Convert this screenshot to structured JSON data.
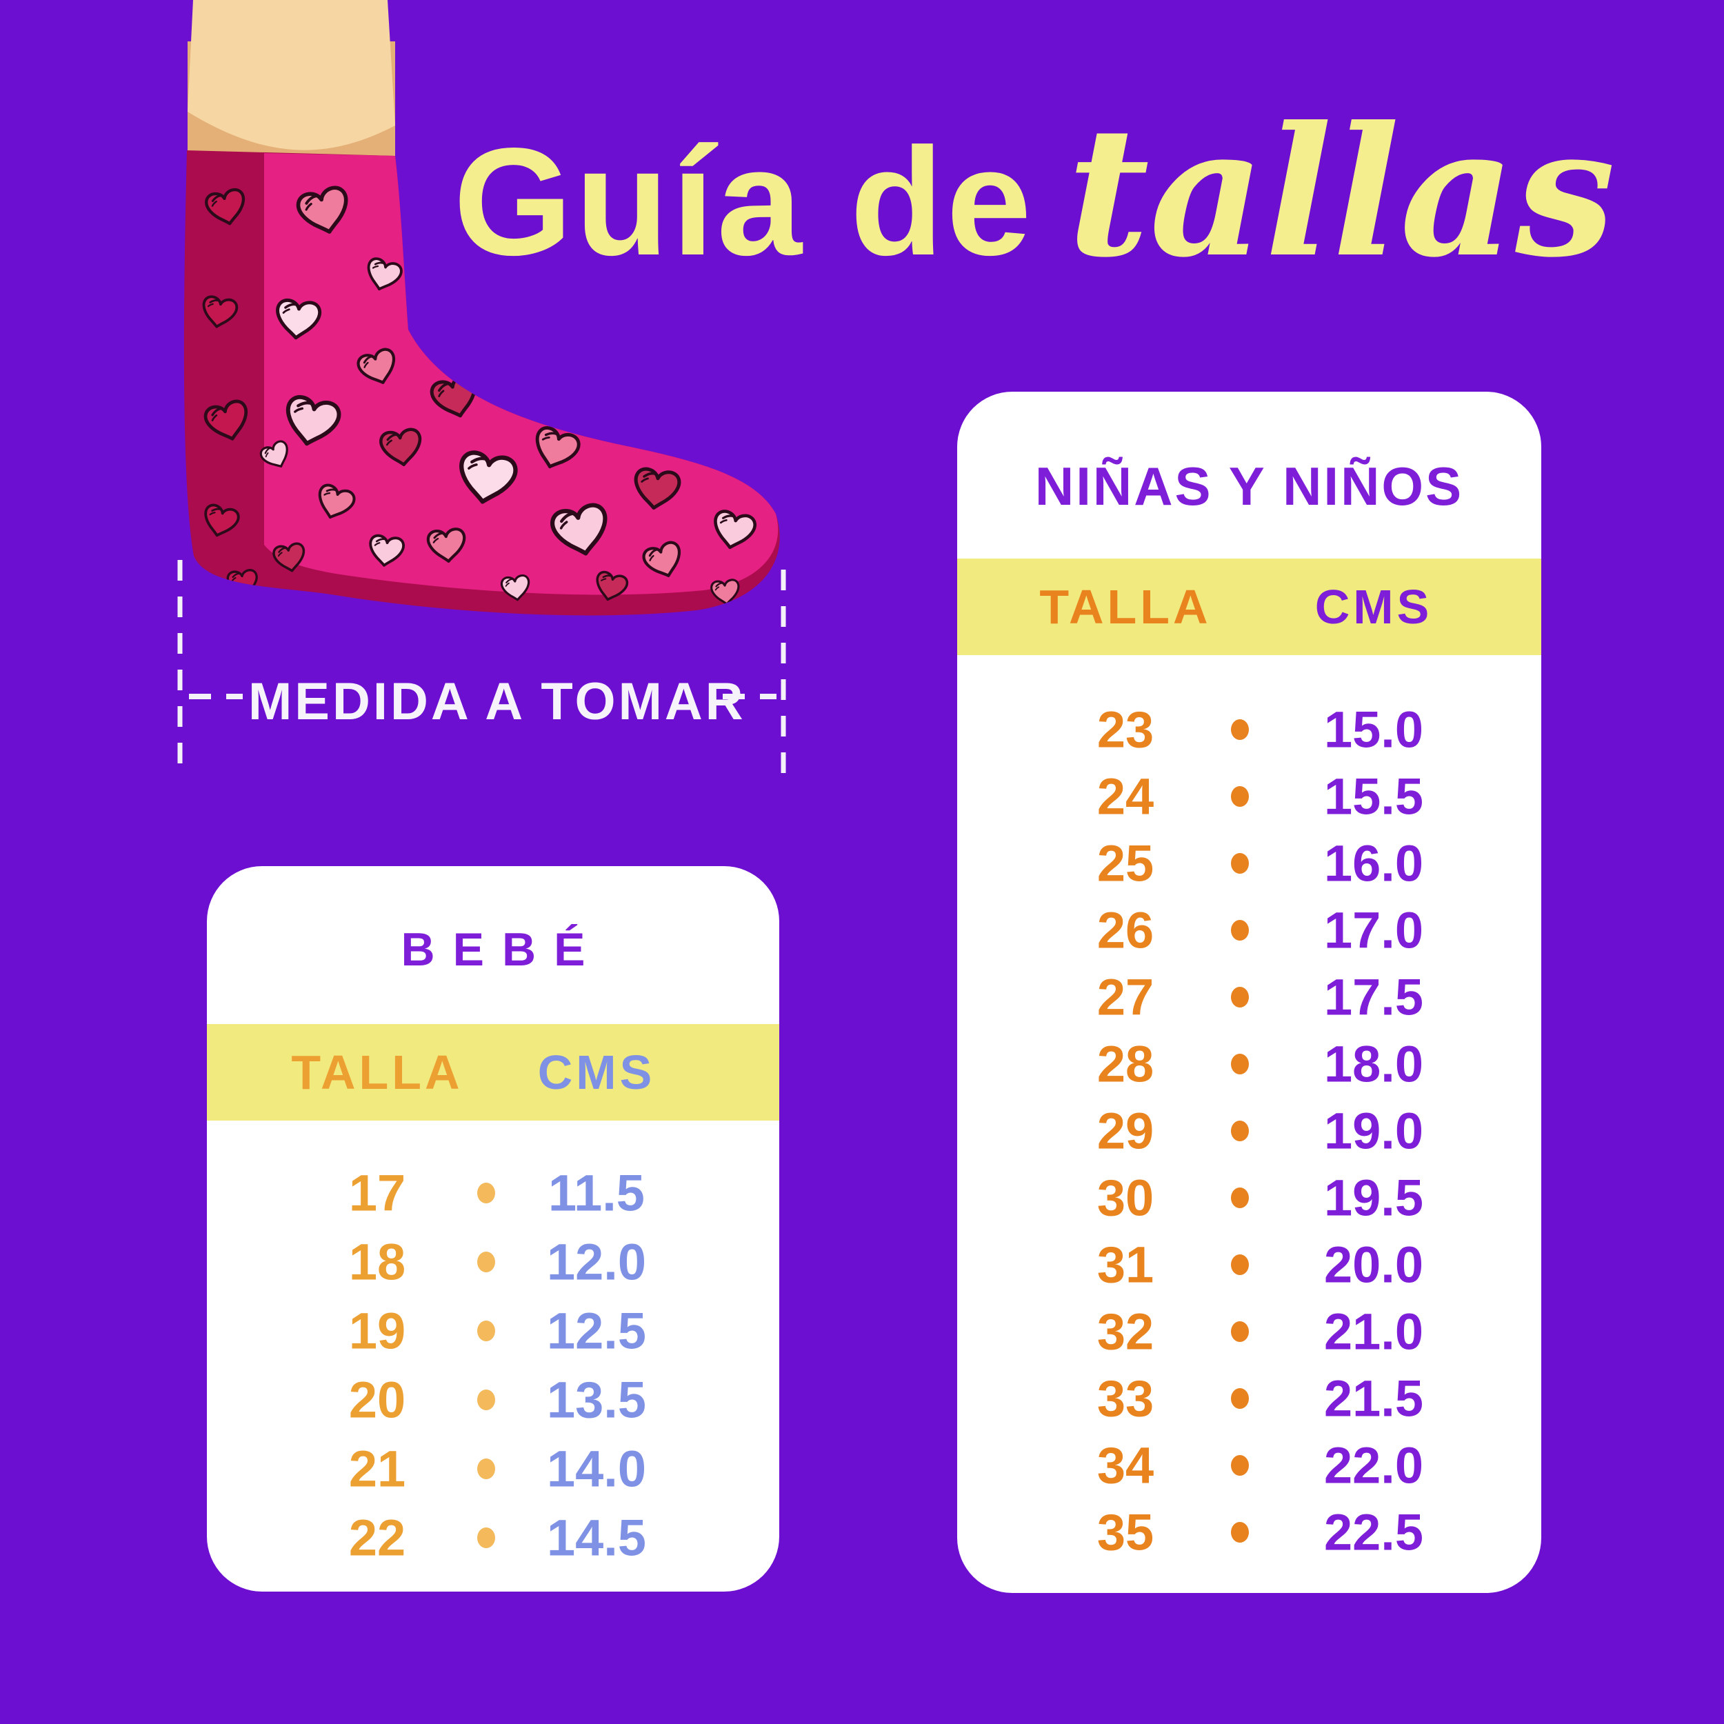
{
  "title": {
    "regular": "Guía de",
    "script": "tallas"
  },
  "measurement": {
    "label": "MEDIDA A TOMAR"
  },
  "tables": {
    "bebe": {
      "title": "BEBÉ",
      "col_talla": "TALLA",
      "col_cms": "CMS",
      "rows": [
        {
          "talla": "17",
          "cms": "11.5"
        },
        {
          "talla": "18",
          "cms": "12.0"
        },
        {
          "talla": "19",
          "cms": "12.5"
        },
        {
          "talla": "20",
          "cms": "13.5"
        },
        {
          "talla": "21",
          "cms": "14.0"
        },
        {
          "talla": "22",
          "cms": "14.5"
        }
      ]
    },
    "ninos": {
      "title": "NIÑAS Y NIÑOS",
      "col_talla": "TALLA",
      "col_cms": "CMS",
      "rows": [
        {
          "talla": "23",
          "cms": "15.0"
        },
        {
          "talla": "24",
          "cms": "15.5"
        },
        {
          "talla": "25",
          "cms": "16.0"
        },
        {
          "talla": "26",
          "cms": "17.0"
        },
        {
          "talla": "27",
          "cms": "17.5"
        },
        {
          "talla": "28",
          "cms": "18.0"
        },
        {
          "talla": "29",
          "cms": "19.0"
        },
        {
          "talla": "30",
          "cms": "19.5"
        },
        {
          "talla": "31",
          "cms": "20.0"
        },
        {
          "talla": "32",
          "cms": "21.0"
        },
        {
          "talla": "33",
          "cms": "21.5"
        },
        {
          "talla": "34",
          "cms": "22.0"
        },
        {
          "talla": "35",
          "cms": "22.5"
        }
      ]
    }
  },
  "icons": {
    "sock": "sock-with-hearts-illustration",
    "bullet": "dot-bullet",
    "measure_guides": "dashed-measurement-lines"
  },
  "colors": {
    "background": "#6C0FD1",
    "card": "#FFFFFF",
    "band_yellow": "#F1EA7F",
    "title_yellow": "#F4EE8F",
    "purple_text": "#7E1ED8",
    "orange": "#E8831E",
    "orange_light": "#EDA032",
    "dot_left": "#F3B95A",
    "cms_blue": "#7E91E4",
    "white_text": "#F7F3FB",
    "sock_pink": "#E52183",
    "sock_dark": "#AB0C4D",
    "skin": "#F6D6A3"
  }
}
